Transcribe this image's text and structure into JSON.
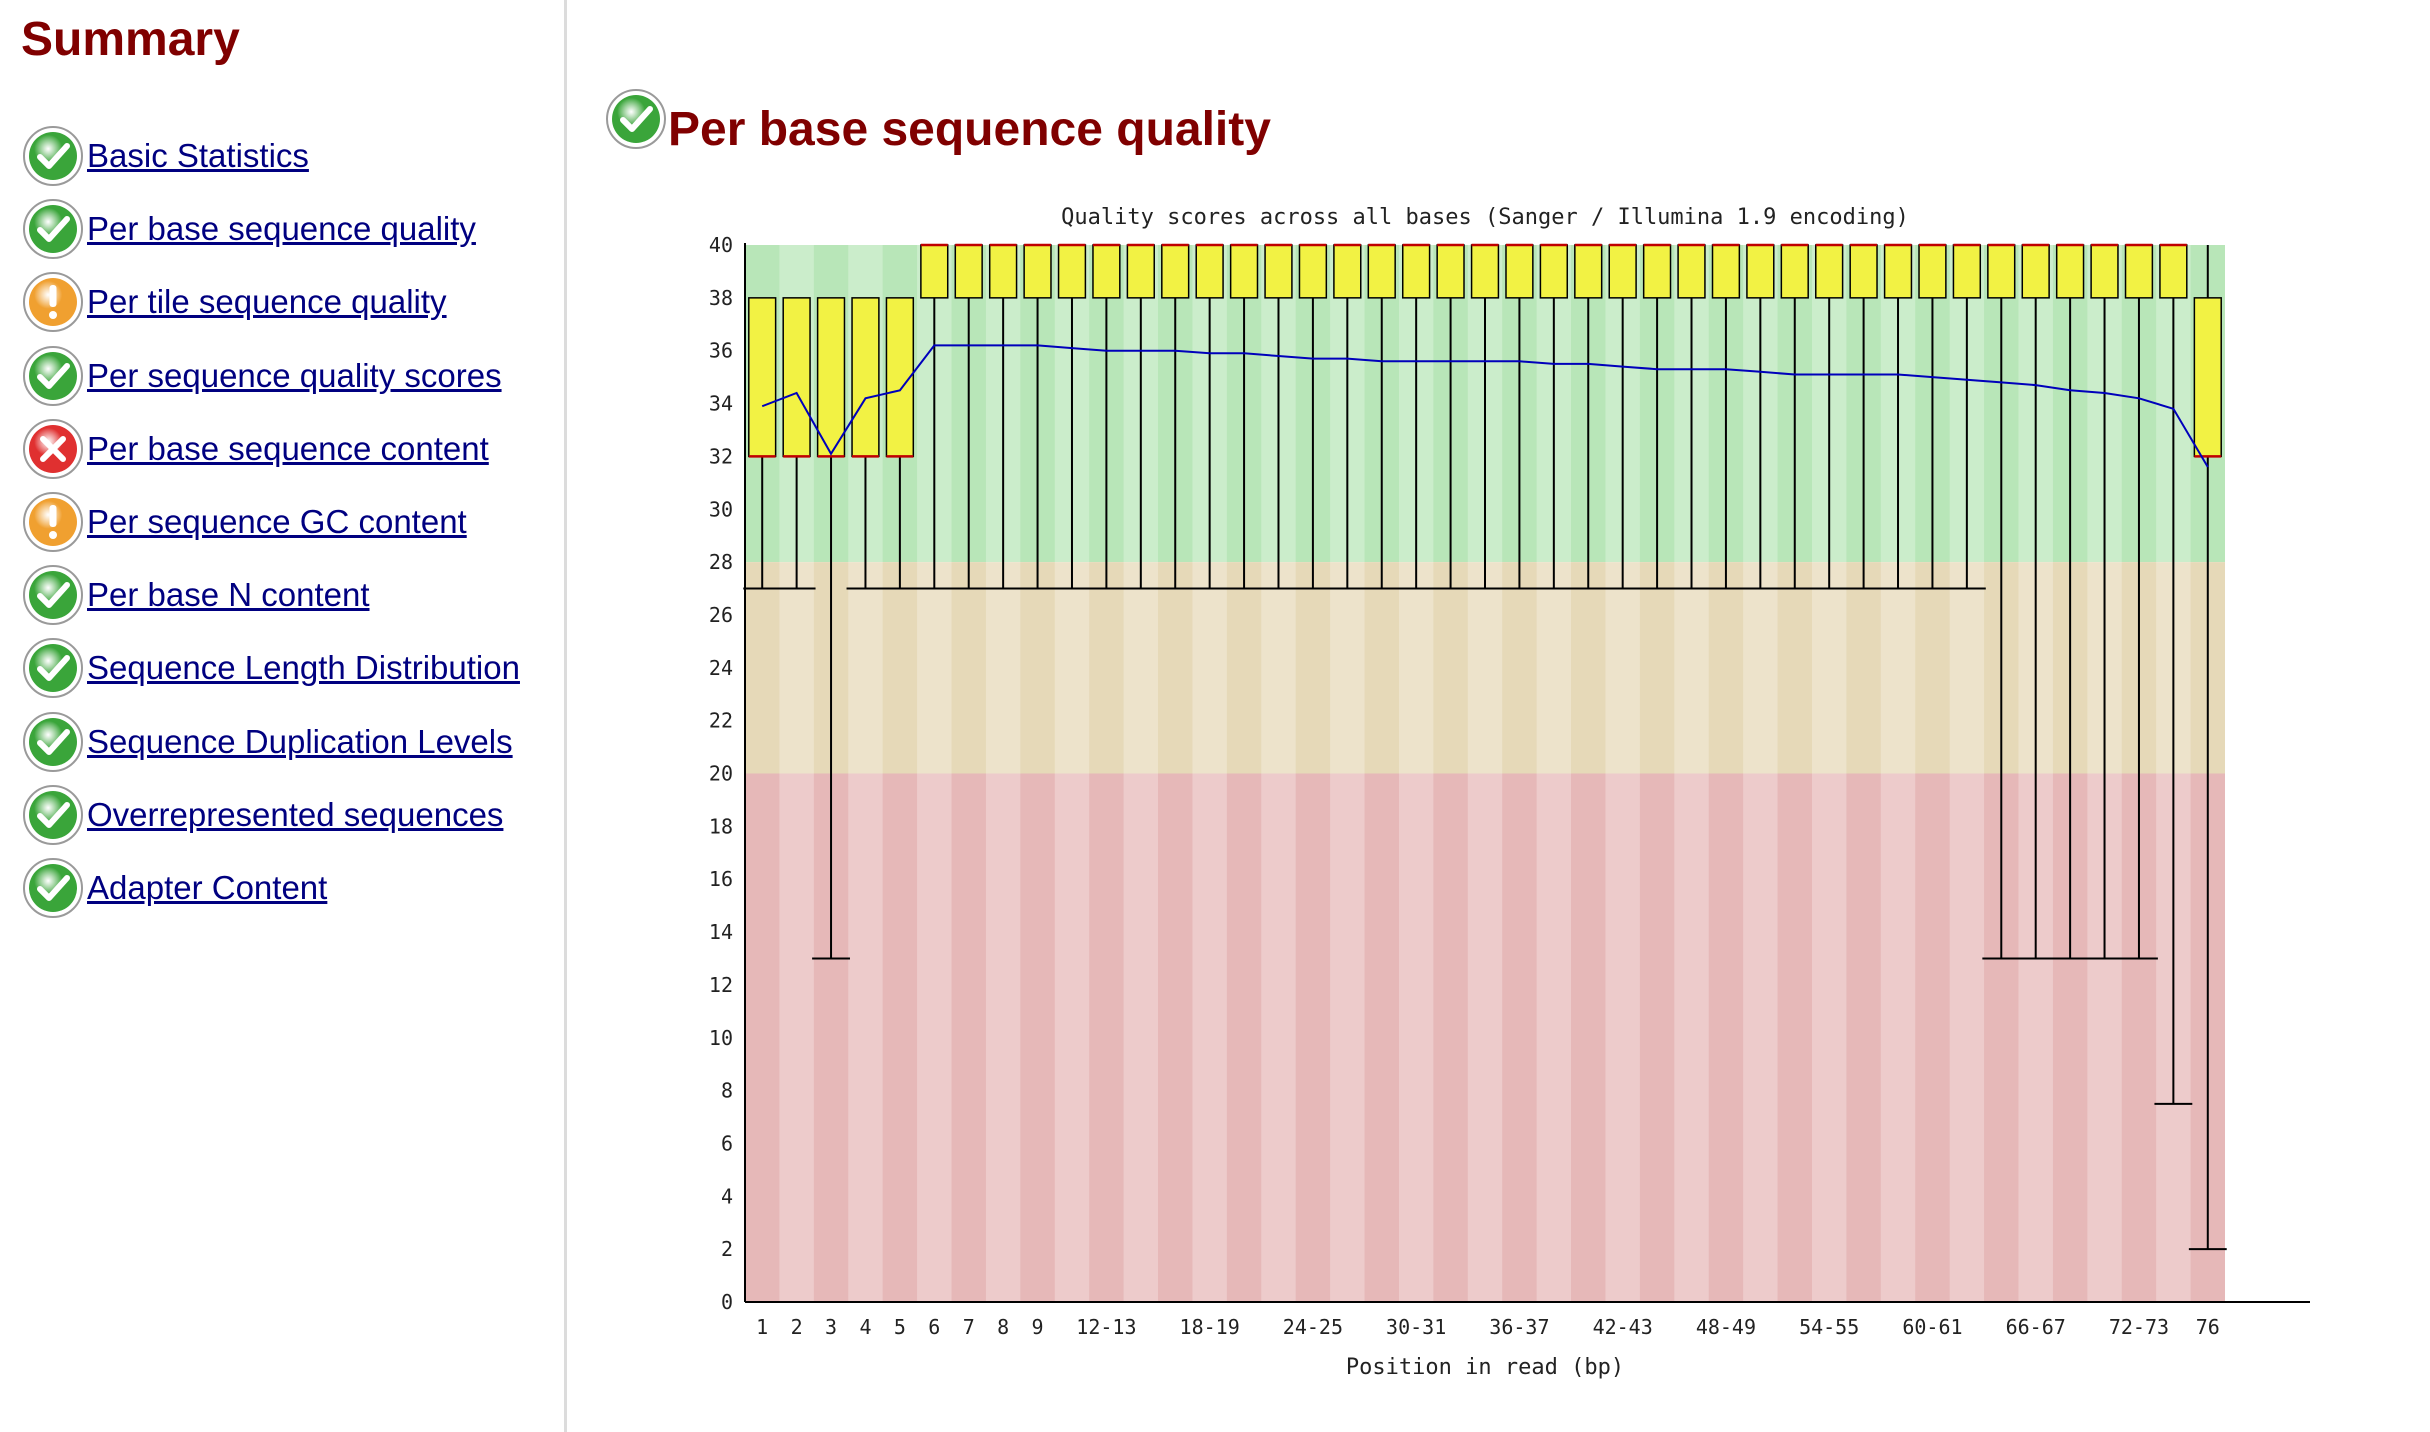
{
  "sidebar": {
    "title": "Summary",
    "items": [
      {
        "label": "Basic Statistics",
        "status": "pass"
      },
      {
        "label": "Per base sequence quality",
        "status": "pass"
      },
      {
        "label": "Per tile sequence quality",
        "status": "warn"
      },
      {
        "label": "Per sequence quality scores",
        "status": "pass"
      },
      {
        "label": "Per base sequence content",
        "status": "fail"
      },
      {
        "label": "Per sequence GC content",
        "status": "warn"
      },
      {
        "label": "Per base N content",
        "status": "pass"
      },
      {
        "label": "Sequence Length Distribution",
        "status": "pass"
      },
      {
        "label": "Sequence Duplication Levels",
        "status": "pass"
      },
      {
        "label": "Overrepresented sequences",
        "status": "pass"
      },
      {
        "label": "Adapter Content",
        "status": "pass"
      }
    ]
  },
  "main": {
    "title": "Per base sequence quality",
    "status": "pass"
  },
  "colors": {
    "pass": "#3aa53a",
    "warn": "#f0a030",
    "fail": "#e03030",
    "heading": "#800000",
    "link": "#000080"
  },
  "chart_data": {
    "type": "box",
    "title": "Quality scores across all bases (Sanger / Illumina 1.9 encoding)",
    "xlabel": "Position in read (bp)",
    "ylim": [
      0,
      40
    ],
    "yticks": [
      0,
      2,
      4,
      6,
      8,
      10,
      12,
      14,
      16,
      18,
      20,
      22,
      24,
      26,
      28,
      30,
      32,
      34,
      36,
      38,
      40
    ],
    "categories": [
      "1",
      "2",
      "3",
      "4",
      "5",
      "6",
      "7",
      "8",
      "9",
      "10-11",
      "12-13",
      "14-15",
      "16-17",
      "18-19",
      "20-21",
      "22-23",
      "24-25",
      "26-27",
      "28-29",
      "30-31",
      "32-33",
      "34-35",
      "36-37",
      "38-39",
      "40-41",
      "42-43",
      "44-45",
      "46-47",
      "48-49",
      "50-51",
      "52-53",
      "54-55",
      "56-57",
      "58-59",
      "60-61",
      "62-63",
      "64-65",
      "66-67",
      "68-69",
      "70-71",
      "72-73",
      "74-75",
      "76"
    ],
    "x_tick_labels": [
      "1",
      "2",
      "3",
      "4",
      "5",
      "6",
      "7",
      "8",
      "9",
      "12-13",
      "18-19",
      "24-25",
      "30-31",
      "36-37",
      "42-43",
      "48-49",
      "54-55",
      "60-61",
      "66-67",
      "72-73",
      "76"
    ],
    "q1": [
      32,
      32,
      32,
      32,
      32,
      38,
      38,
      38,
      38,
      38,
      38,
      38,
      38,
      38,
      38,
      38,
      38,
      38,
      38,
      38,
      38,
      38,
      38,
      38,
      38,
      38,
      38,
      38,
      38,
      38,
      38,
      38,
      38,
      38,
      38,
      38,
      38,
      38,
      38,
      38,
      38,
      38,
      32
    ],
    "median": [
      32,
      32,
      32,
      32,
      32,
      40,
      40,
      40,
      40,
      40,
      40,
      40,
      40,
      40,
      40,
      40,
      40,
      40,
      40,
      40,
      40,
      40,
      40,
      40,
      40,
      40,
      40,
      40,
      40,
      40,
      40,
      40,
      40,
      40,
      40,
      40,
      40,
      40,
      40,
      40,
      40,
      40,
      32
    ],
    "q3": [
      38,
      38,
      38,
      38,
      38,
      40,
      40,
      40,
      40,
      40,
      40,
      40,
      40,
      40,
      40,
      40,
      40,
      40,
      40,
      40,
      40,
      40,
      40,
      40,
      40,
      40,
      40,
      40,
      40,
      40,
      40,
      40,
      40,
      40,
      40,
      40,
      40,
      40,
      40,
      40,
      40,
      40,
      38
    ],
    "lower_whisker": [
      27,
      27,
      13,
      27,
      27,
      27,
      27,
      27,
      27,
      27,
      27,
      27,
      27,
      27,
      27,
      27,
      27,
      27,
      27,
      27,
      27,
      27,
      27,
      27,
      27,
      27,
      27,
      27,
      27,
      27,
      27,
      27,
      27,
      27,
      27,
      27,
      13,
      13,
      13,
      13,
      13,
      7.5,
      2
    ],
    "upper_whisker": [
      38,
      38,
      38,
      38,
      38,
      40,
      40,
      40,
      40,
      40,
      40,
      40,
      40,
      40,
      40,
      40,
      40,
      40,
      40,
      40,
      40,
      40,
      40,
      40,
      40,
      40,
      40,
      40,
      40,
      40,
      40,
      40,
      40,
      40,
      40,
      40,
      40,
      40,
      40,
      40,
      40,
      40,
      40
    ],
    "mean": [
      33.9,
      34.4,
      32.1,
      34.2,
      34.5,
      36.2,
      36.2,
      36.2,
      36.2,
      36.1,
      36.0,
      36.0,
      36.0,
      35.9,
      35.9,
      35.8,
      35.7,
      35.7,
      35.6,
      35.6,
      35.6,
      35.6,
      35.6,
      35.5,
      35.5,
      35.4,
      35.3,
      35.3,
      35.3,
      35.2,
      35.1,
      35.1,
      35.1,
      35.1,
      35.0,
      34.9,
      34.8,
      34.7,
      34.5,
      34.4,
      34.2,
      33.8,
      31.6
    ],
    "zones": [
      {
        "from": 28,
        "to": 40,
        "color": "#b8e6b8"
      },
      {
        "from": 20,
        "to": 28,
        "color": "#e6d9b8"
      },
      {
        "from": 0,
        "to": 20,
        "color": "#e6b8b8"
      }
    ],
    "box_color": "#f2f244",
    "box_border": "#c00000",
    "mean_color": "#0000bb",
    "grid": false,
    "legend": "none"
  }
}
